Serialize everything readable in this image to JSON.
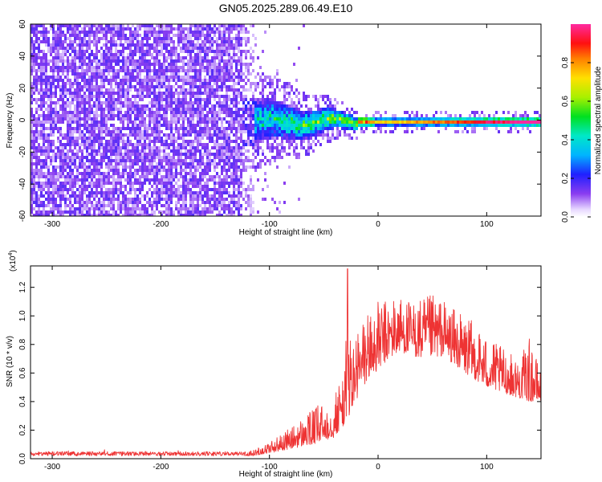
{
  "title": "GN05.2025.289.06.49.E10",
  "colors": {
    "snr_line": "#ee3333",
    "heat_background": "#ffffff",
    "axis": "#000000"
  },
  "chart_data": [
    {
      "type": "heatmap",
      "name": "spectrogram",
      "xlabel": "Height of straight line (km)",
      "ylabel": "Frequency (Hz)",
      "xlim": [
        -320,
        150
      ],
      "ylim": [
        -60,
        60
      ],
      "x_ticks": [
        -300,
        -200,
        -100,
        0,
        100
      ],
      "x_tick_labels": [
        "-300",
        "-200",
        "-100",
        "0",
        "100"
      ],
      "y_ticks": [
        -60,
        -40,
        -20,
        0,
        20,
        40,
        60
      ],
      "y_tick_labels": [
        "-60",
        "-40",
        "-20",
        "0",
        "20",
        "40",
        "60"
      ],
      "colorbar": {
        "label": "Normalized spectral amplitude",
        "range": [
          0,
          1
        ],
        "ticks": [
          0.0,
          0.2,
          0.4,
          0.6,
          0.8
        ],
        "tick_labels": [
          "0.0",
          "0.2",
          "0.4",
          "0.6",
          "0.8"
        ],
        "colormap": "rainbow (purple to magenta)"
      },
      "description_regions": [
        {
          "x_range": [
            -320,
            -120
          ],
          "freq_range": [
            -60,
            60
          ],
          "amplitude": 0.1,
          "pattern": "noise"
        },
        {
          "x_range": [
            -120,
            -20
          ],
          "freq_range": [
            -15,
            15
          ],
          "amplitude": 0.4,
          "pattern": "converging band"
        },
        {
          "x_range": [
            -20,
            150
          ],
          "freq_range": [
            -3,
            3
          ],
          "amplitude": 0.85,
          "pattern": "narrow carrier"
        }
      ]
    },
    {
      "type": "line",
      "name": "snr",
      "xlabel": "Height of straight line (km)",
      "ylabel": "SNR (10 * v/v)",
      "y_multiplier_label": "(x10",
      "y_multiplier_exp": "4",
      "y_multiplier_close": ")",
      "xlim": [
        -320,
        150
      ],
      "ylim": [
        0,
        1.35
      ],
      "x_ticks": [
        -300,
        -200,
        -100,
        0,
        100
      ],
      "x_tick_labels": [
        "-300",
        "-200",
        "-100",
        "0",
        "100"
      ],
      "y_ticks": [
        0,
        0.2,
        0.4,
        0.6,
        0.8,
        1.0,
        1.2
      ],
      "y_tick_labels": [
        "0.0",
        "0.2",
        "0.4",
        "0.6",
        "0.8",
        "1.0",
        "1.2"
      ],
      "envelope": {
        "x": [
          -320,
          -200,
          -130,
          -115,
          -100,
          -80,
          -60,
          -40,
          -30,
          -28,
          -25,
          -20,
          -10,
          0,
          10,
          20,
          30,
          40,
          50,
          60,
          70,
          80,
          90,
          100,
          110,
          120,
          130,
          140,
          150
        ],
        "y": [
          0.04,
          0.04,
          0.04,
          0.06,
          0.12,
          0.22,
          0.35,
          0.45,
          0.7,
          1.33,
          0.8,
          0.9,
          1.05,
          1.1,
          1.12,
          1.15,
          1.1,
          1.12,
          1.15,
          1.12,
          1.05,
          1.0,
          0.95,
          0.85,
          0.8,
          0.75,
          0.7,
          0.85,
          0.6
        ]
      },
      "baseline": {
        "x": [
          -320,
          -200,
          -130,
          -115,
          -100,
          -80,
          -60,
          -40,
          -30,
          -20,
          -10,
          0,
          10,
          20,
          40,
          60,
          80,
          100,
          120,
          140,
          150
        ],
        "y": [
          0.02,
          0.02,
          0.02,
          0.02,
          0.04,
          0.07,
          0.1,
          0.15,
          0.25,
          0.4,
          0.55,
          0.62,
          0.7,
          0.75,
          0.7,
          0.72,
          0.6,
          0.5,
          0.45,
          0.4,
          0.4
        ]
      },
      "series": [
        {
          "name": "SNR",
          "color": "#ee3333"
        }
      ]
    }
  ]
}
